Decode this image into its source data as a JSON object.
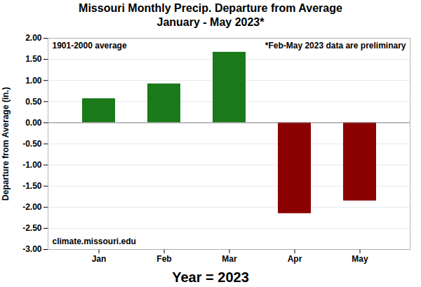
{
  "chart_data": {
    "type": "bar",
    "title": "Missouri Monthly Precip. Departure from Average",
    "subtitle": "January - May 2023*",
    "xlabel": "Year = 2023",
    "ylabel": "Departure from Average (in.)",
    "categories": [
      "Jan",
      "Feb",
      "Mar",
      "Apr",
      "May"
    ],
    "values": [
      0.57,
      0.92,
      1.67,
      -2.15,
      -1.85
    ],
    "colors": [
      "#1a7a1a",
      "#1a7a1a",
      "#1a7a1a",
      "#8b0000",
      "#8b0000"
    ],
    "ylim": [
      -3.0,
      2.0
    ],
    "yticks": [
      {
        "value": -3.0,
        "label": "-3.00"
      },
      {
        "value": -2.5,
        "label": "-2.50"
      },
      {
        "value": -2.0,
        "label": "-2.00"
      },
      {
        "value": -1.5,
        "label": "-1.50"
      },
      {
        "value": -1.0,
        "label": "-1.00"
      },
      {
        "value": -0.5,
        "label": "-0.50"
      },
      {
        "value": 0.0,
        "label": "0.00"
      },
      {
        "value": 0.5,
        "label": "0.50"
      },
      {
        "value": 1.0,
        "label": "1.00"
      },
      {
        "value": 1.5,
        "label": "1.50"
      },
      {
        "value": 2.0,
        "label": "2.00"
      }
    ],
    "grid": true,
    "annotations": [
      "1901-2000 average",
      "*Feb-May 2023 data are preliminary",
      "climate.missouri.edu"
    ]
  }
}
